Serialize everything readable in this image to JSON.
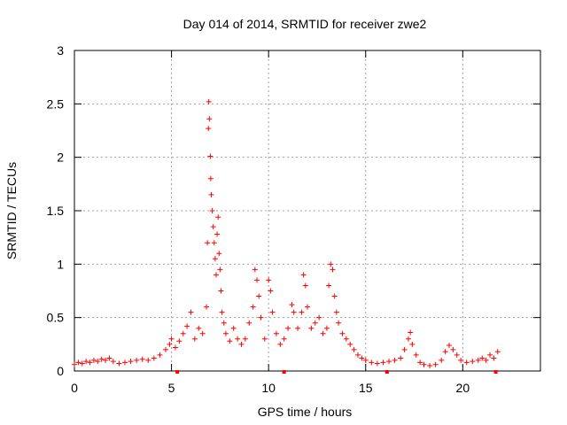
{
  "chart_data": {
    "type": "scatter",
    "title": "Day 014 of 2014, SRMTID for receiver zwe2",
    "xlabel": "GPS time / hours",
    "ylabel": "SRMTID / TECUs",
    "xlim": [
      0,
      24
    ],
    "ylim": [
      0,
      3
    ],
    "xticks": [
      0,
      5,
      10,
      15,
      20
    ],
    "yticks": [
      0,
      0.5,
      1,
      1.5,
      2,
      2.5,
      3
    ],
    "xtick_labels": [
      "0",
      "5",
      "10",
      "15",
      "20"
    ],
    "ytick_labels": [
      "0",
      "0.5",
      "1",
      "1.5",
      "2",
      "2.5",
      "3"
    ],
    "grid": true,
    "marker": "+",
    "color": "#ff0000",
    "series": [
      {
        "name": "SRMTID",
        "points": [
          [
            0.0,
            0.06
          ],
          [
            0.2,
            0.08
          ],
          [
            0.4,
            0.07
          ],
          [
            0.6,
            0.09
          ],
          [
            0.8,
            0.08
          ],
          [
            1.0,
            0.1
          ],
          [
            1.2,
            0.09
          ],
          [
            1.4,
            0.11
          ],
          [
            1.6,
            0.1
          ],
          [
            1.8,
            0.12
          ],
          [
            2.0,
            0.09
          ],
          [
            2.3,
            0.07
          ],
          [
            2.6,
            0.08
          ],
          [
            2.9,
            0.09
          ],
          [
            3.2,
            0.1
          ],
          [
            3.5,
            0.11
          ],
          [
            3.8,
            0.1
          ],
          [
            4.1,
            0.12
          ],
          [
            4.4,
            0.15
          ],
          [
            4.7,
            0.2
          ],
          [
            4.9,
            0.25
          ],
          [
            5.0,
            0.3
          ],
          [
            5.2,
            0.22
          ],
          [
            5.4,
            0.28
          ],
          [
            5.6,
            0.35
          ],
          [
            5.8,
            0.42
          ],
          [
            6.0,
            0.55
          ],
          [
            6.2,
            0.3
          ],
          [
            6.4,
            0.4
          ],
          [
            6.6,
            0.35
          ],
          [
            6.8,
            0.6
          ],
          [
            6.85,
            1.2
          ],
          [
            6.9,
            2.27
          ],
          [
            6.92,
            2.52
          ],
          [
            6.95,
            2.36
          ],
          [
            7.0,
            2.01
          ],
          [
            7.02,
            1.8
          ],
          [
            7.05,
            1.65
          ],
          [
            7.1,
            1.5
          ],
          [
            7.15,
            1.35
          ],
          [
            7.2,
            1.2
          ],
          [
            7.25,
            1.05
          ],
          [
            7.3,
            0.9
          ],
          [
            7.35,
            1.28
          ],
          [
            7.4,
            1.44
          ],
          [
            7.45,
            1.1
          ],
          [
            7.5,
            0.95
          ],
          [
            7.55,
            0.75
          ],
          [
            7.6,
            0.55
          ],
          [
            7.7,
            0.45
          ],
          [
            7.8,
            0.35
          ],
          [
            8.0,
            0.28
          ],
          [
            8.2,
            0.4
          ],
          [
            8.4,
            0.3
          ],
          [
            8.6,
            0.25
          ],
          [
            8.8,
            0.3
          ],
          [
            9.0,
            0.45
          ],
          [
            9.2,
            0.6
          ],
          [
            9.3,
            0.95
          ],
          [
            9.4,
            0.85
          ],
          [
            9.5,
            0.7
          ],
          [
            9.6,
            0.5
          ],
          [
            9.8,
            0.3
          ],
          [
            10.0,
            0.85
          ],
          [
            10.1,
            0.75
          ],
          [
            10.2,
            0.55
          ],
          [
            10.4,
            0.35
          ],
          [
            10.6,
            0.25
          ],
          [
            10.8,
            0.3
          ],
          [
            11.0,
            0.4
          ],
          [
            11.2,
            0.62
          ],
          [
            11.3,
            0.55
          ],
          [
            11.5,
            0.4
          ],
          [
            11.7,
            0.55
          ],
          [
            11.8,
            0.9
          ],
          [
            11.9,
            0.8
          ],
          [
            12.0,
            0.6
          ],
          [
            12.2,
            0.4
          ],
          [
            12.4,
            0.45
          ],
          [
            12.6,
            0.5
          ],
          [
            12.8,
            0.35
          ],
          [
            13.0,
            0.4
          ],
          [
            13.1,
            0.8
          ],
          [
            13.2,
            1.0
          ],
          [
            13.3,
            0.95
          ],
          [
            13.4,
            0.7
          ],
          [
            13.5,
            0.55
          ],
          [
            13.6,
            0.45
          ],
          [
            13.8,
            0.35
          ],
          [
            14.0,
            0.3
          ],
          [
            14.2,
            0.25
          ],
          [
            14.4,
            0.2
          ],
          [
            14.6,
            0.15
          ],
          [
            14.8,
            0.12
          ],
          [
            15.0,
            0.1
          ],
          [
            15.3,
            0.08
          ],
          [
            15.6,
            0.07
          ],
          [
            15.9,
            0.08
          ],
          [
            16.2,
            0.09
          ],
          [
            16.5,
            0.1
          ],
          [
            16.8,
            0.12
          ],
          [
            17.0,
            0.2
          ],
          [
            17.2,
            0.3
          ],
          [
            17.3,
            0.36
          ],
          [
            17.4,
            0.25
          ],
          [
            17.6,
            0.15
          ],
          [
            17.8,
            0.08
          ],
          [
            18.0,
            0.06
          ],
          [
            18.3,
            0.05
          ],
          [
            18.6,
            0.06
          ],
          [
            18.9,
            0.1
          ],
          [
            19.1,
            0.18
          ],
          [
            19.3,
            0.24
          ],
          [
            19.5,
            0.2
          ],
          [
            19.7,
            0.15
          ],
          [
            19.9,
            0.1
          ],
          [
            20.2,
            0.08
          ],
          [
            20.5,
            0.09
          ],
          [
            20.8,
            0.1
          ],
          [
            21.0,
            0.12
          ],
          [
            21.2,
            0.1
          ],
          [
            21.4,
            0.15
          ],
          [
            21.6,
            0.12
          ],
          [
            21.8,
            0.18
          ]
        ],
        "dropouts": [
          5.3,
          10.8,
          16.1,
          21.7
        ]
      }
    ]
  }
}
